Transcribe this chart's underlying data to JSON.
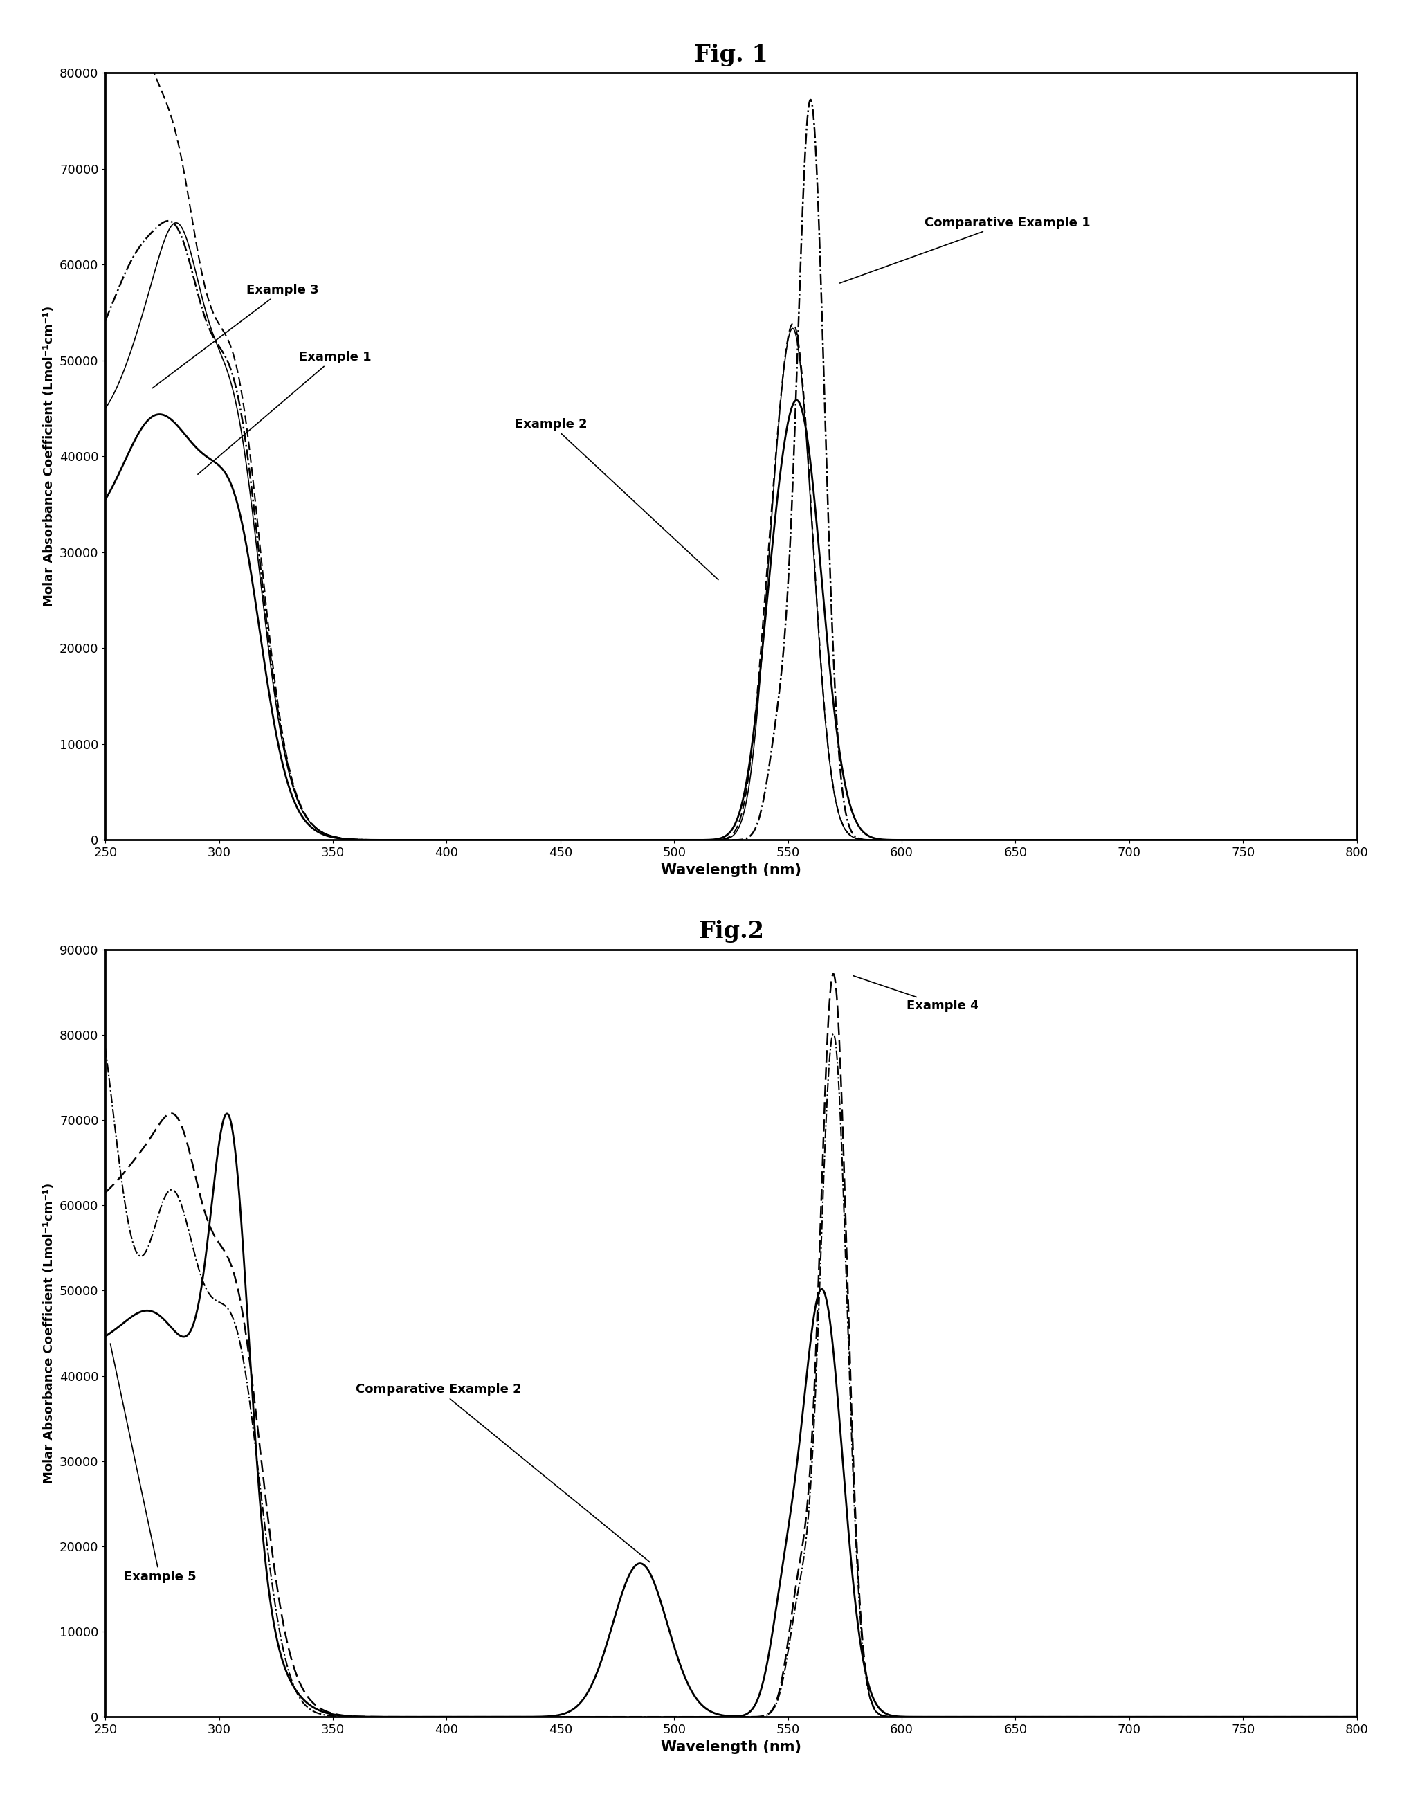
{
  "fig1": {
    "title": "Fig. 1",
    "ylabel": "Molar Absorbance Coefficient (Lmol⁻¹cm⁻¹)",
    "xlabel": "Wavelength (nm)",
    "xlim": [
      250,
      800
    ],
    "ylim": [
      0,
      80000
    ],
    "yticks": [
      0,
      10000,
      20000,
      30000,
      40000,
      50000,
      60000,
      70000,
      80000
    ],
    "xticks": [
      250,
      300,
      350,
      400,
      450,
      500,
      550,
      600,
      650,
      700,
      750,
      800
    ]
  },
  "fig2": {
    "title": "Fig.2",
    "ylabel": "Molar Absorbance Coefficient (Lmol⁻¹cm⁻¹)",
    "xlabel": "Wavelength (nm)",
    "xlim": [
      250,
      800
    ],
    "ylim": [
      0,
      90000
    ],
    "yticks": [
      0,
      10000,
      20000,
      30000,
      40000,
      50000,
      60000,
      70000,
      80000,
      90000
    ],
    "xticks": [
      250,
      300,
      350,
      400,
      450,
      500,
      550,
      600,
      650,
      700,
      750,
      800
    ]
  }
}
